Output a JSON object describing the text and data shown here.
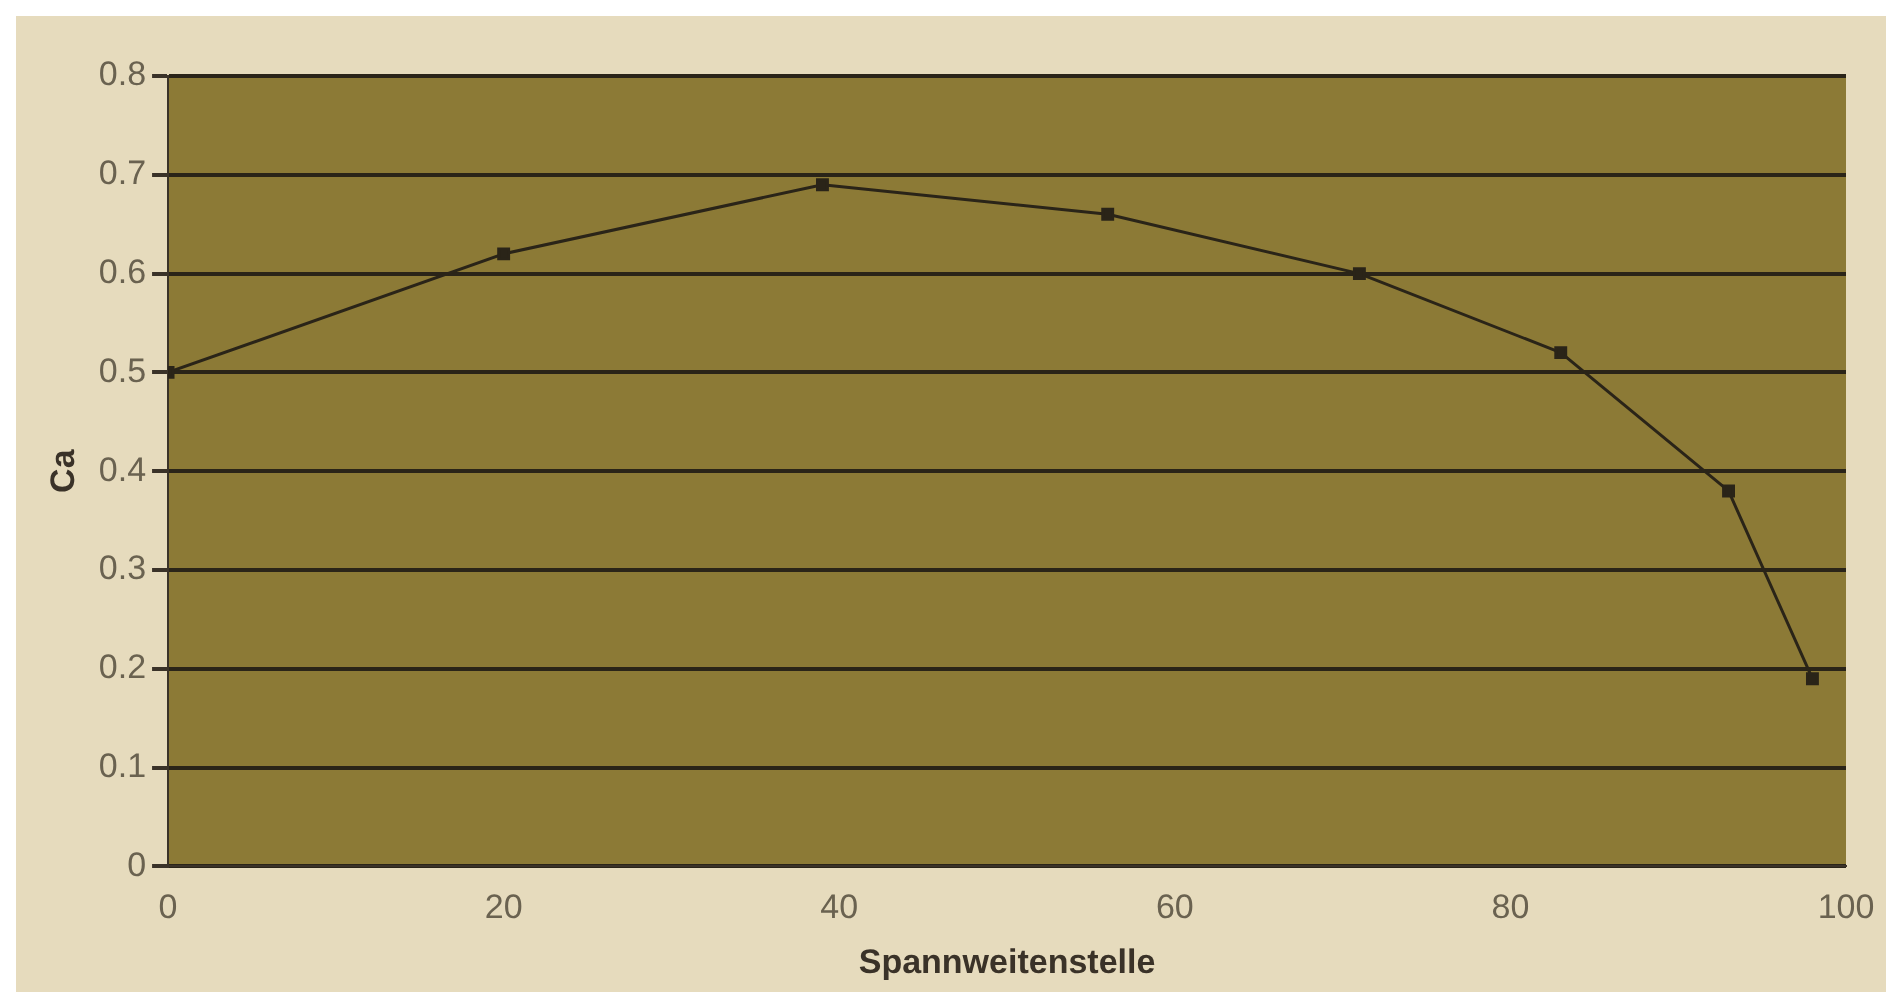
{
  "chart_data": {
    "type": "line",
    "xlabel": "Spannweitenstelle",
    "ylabel": "Ca",
    "x": [
      0,
      20,
      39,
      56,
      71,
      83,
      93,
      98
    ],
    "series": [
      {
        "color": "#2a2418",
        "values": [
          0.5,
          0.62,
          0.69,
          0.66,
          0.6,
          0.52,
          0.38,
          0.19
        ]
      }
    ],
    "xlim": [
      0,
      100
    ],
    "xticks": [
      0,
      20,
      40,
      60,
      80,
      100
    ],
    "ylim": [
      0,
      0.8
    ],
    "yticks": [
      0,
      0.1,
      0.2,
      0.3,
      0.4,
      0.5,
      0.6,
      0.7,
      0.8
    ],
    "grid": "y",
    "legend": false,
    "marker": "square",
    "line_style": "solid"
  }
}
